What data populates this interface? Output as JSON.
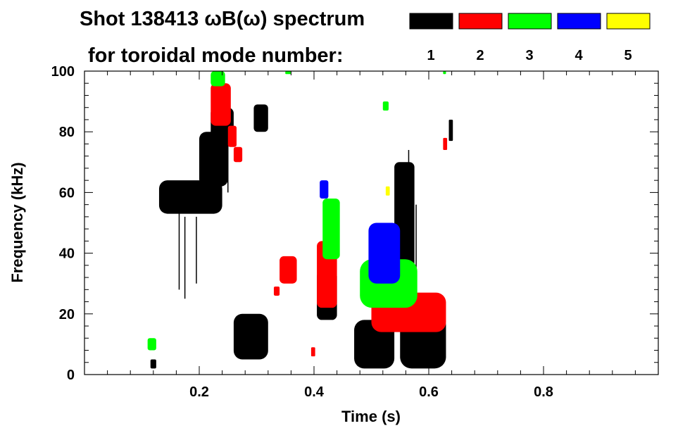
{
  "chart_data": {
    "type": "scatter",
    "title_line1": "Shot 138413 ωB(ω) spectrum",
    "title_line2": "for toroidal mode number:",
    "xlabel": "Time (s)",
    "ylabel": "Frequency (kHz)",
    "xlim": [
      0.0,
      1.0
    ],
    "ylim": [
      0,
      100
    ],
    "x_ticks": [
      {
        "value": 0.2,
        "label": "0.2"
      },
      {
        "value": 0.4,
        "label": "0.4"
      },
      {
        "value": 0.6,
        "label": "0.6"
      },
      {
        "value": 0.8,
        "label": "0.8"
      }
    ],
    "y_ticks": [
      {
        "value": 0,
        "label": "0"
      },
      {
        "value": 20,
        "label": "20"
      },
      {
        "value": 40,
        "label": "40"
      },
      {
        "value": 60,
        "label": "60"
      },
      {
        "value": 80,
        "label": "80"
      },
      {
        "value": 100,
        "label": "100"
      }
    ],
    "x_minor_step": 0.04,
    "y_minor_step": 4,
    "legend": [
      {
        "label": "1",
        "color": "#000000"
      },
      {
        "label": "2",
        "color": "#ff0000"
      },
      {
        "label": "3",
        "color": "#00ff00"
      },
      {
        "label": "4",
        "color": "#0000ff"
      },
      {
        "label": "5",
        "color": "#ffff00"
      }
    ],
    "series": [
      {
        "mode": "1",
        "color": "#000000",
        "blobs": [
          {
            "x0": 0.13,
            "x1": 0.24,
            "y0": 53,
            "y1": 64
          },
          {
            "x0": 0.2,
            "x1": 0.25,
            "y0": 62,
            "y1": 80
          },
          {
            "x0": 0.22,
            "x1": 0.26,
            "y0": 77,
            "y1": 88
          },
          {
            "x0": 0.295,
            "x1": 0.32,
            "y0": 80,
            "y1": 89
          },
          {
            "x0": 0.26,
            "x1": 0.32,
            "y0": 5,
            "y1": 20
          },
          {
            "x0": 0.405,
            "x1": 0.44,
            "y0": 18,
            "y1": 34
          },
          {
            "x0": 0.47,
            "x1": 0.54,
            "y0": 2,
            "y1": 18
          },
          {
            "x0": 0.55,
            "x1": 0.63,
            "y0": 2,
            "y1": 20
          },
          {
            "x0": 0.54,
            "x1": 0.575,
            "y0": 18,
            "y1": 70
          },
          {
            "x0": 0.115,
            "x1": 0.125,
            "y0": 2,
            "y1": 5
          },
          {
            "x0": 0.635,
            "x1": 0.642,
            "y0": 77,
            "y1": 84
          }
        ],
        "lines": [
          {
            "x": 0.165,
            "y0": 28,
            "y1": 60
          },
          {
            "x": 0.175,
            "y0": 25,
            "y1": 52
          },
          {
            "x": 0.195,
            "y0": 30,
            "y1": 52
          },
          {
            "x": 0.25,
            "y0": 60,
            "y1": 82
          },
          {
            "x": 0.565,
            "y0": 30,
            "y1": 74
          },
          {
            "x": 0.578,
            "y0": 30,
            "y1": 56
          }
        ]
      },
      {
        "mode": "2",
        "color": "#ff0000",
        "blobs": [
          {
            "x0": 0.22,
            "x1": 0.255,
            "y0": 82,
            "y1": 96
          },
          {
            "x0": 0.25,
            "x1": 0.265,
            "y0": 75,
            "y1": 82
          },
          {
            "x0": 0.26,
            "x1": 0.275,
            "y0": 70,
            "y1": 75
          },
          {
            "x0": 0.34,
            "x1": 0.37,
            "y0": 30,
            "y1": 39
          },
          {
            "x0": 0.405,
            "x1": 0.44,
            "y0": 22,
            "y1": 44
          },
          {
            "x0": 0.5,
            "x1": 0.63,
            "y0": 14,
            "y1": 27
          },
          {
            "x0": 0.33,
            "x1": 0.34,
            "y0": 26,
            "y1": 29
          },
          {
            "x0": 0.625,
            "x1": 0.632,
            "y0": 74,
            "y1": 78
          },
          {
            "x0": 0.395,
            "x1": 0.402,
            "y0": 6,
            "y1": 9
          }
        ],
        "lines": []
      },
      {
        "mode": "3",
        "color": "#00ff00",
        "blobs": [
          {
            "x0": 0.22,
            "x1": 0.245,
            "y0": 95,
            "y1": 100
          },
          {
            "x0": 0.415,
            "x1": 0.445,
            "y0": 38,
            "y1": 58
          },
          {
            "x0": 0.48,
            "x1": 0.58,
            "y0": 22,
            "y1": 38
          },
          {
            "x0": 0.52,
            "x1": 0.53,
            "y0": 87,
            "y1": 90
          },
          {
            "x0": 0.11,
            "x1": 0.125,
            "y0": 8,
            "y1": 12
          },
          {
            "x0": 0.35,
            "x1": 0.36,
            "y0": 99,
            "y1": 100
          },
          {
            "x0": 0.625,
            "x1": 0.63,
            "y0": 99,
            "y1": 100
          }
        ],
        "lines": []
      },
      {
        "mode": "4",
        "color": "#0000ff",
        "blobs": [
          {
            "x0": 0.495,
            "x1": 0.55,
            "y0": 30,
            "y1": 50
          },
          {
            "x0": 0.41,
            "x1": 0.425,
            "y0": 58,
            "y1": 64
          }
        ],
        "lines": []
      },
      {
        "mode": "5",
        "color": "#ffff00",
        "blobs": [
          {
            "x0": 0.525,
            "x1": 0.532,
            "y0": 59,
            "y1": 62
          }
        ],
        "lines": []
      }
    ]
  }
}
